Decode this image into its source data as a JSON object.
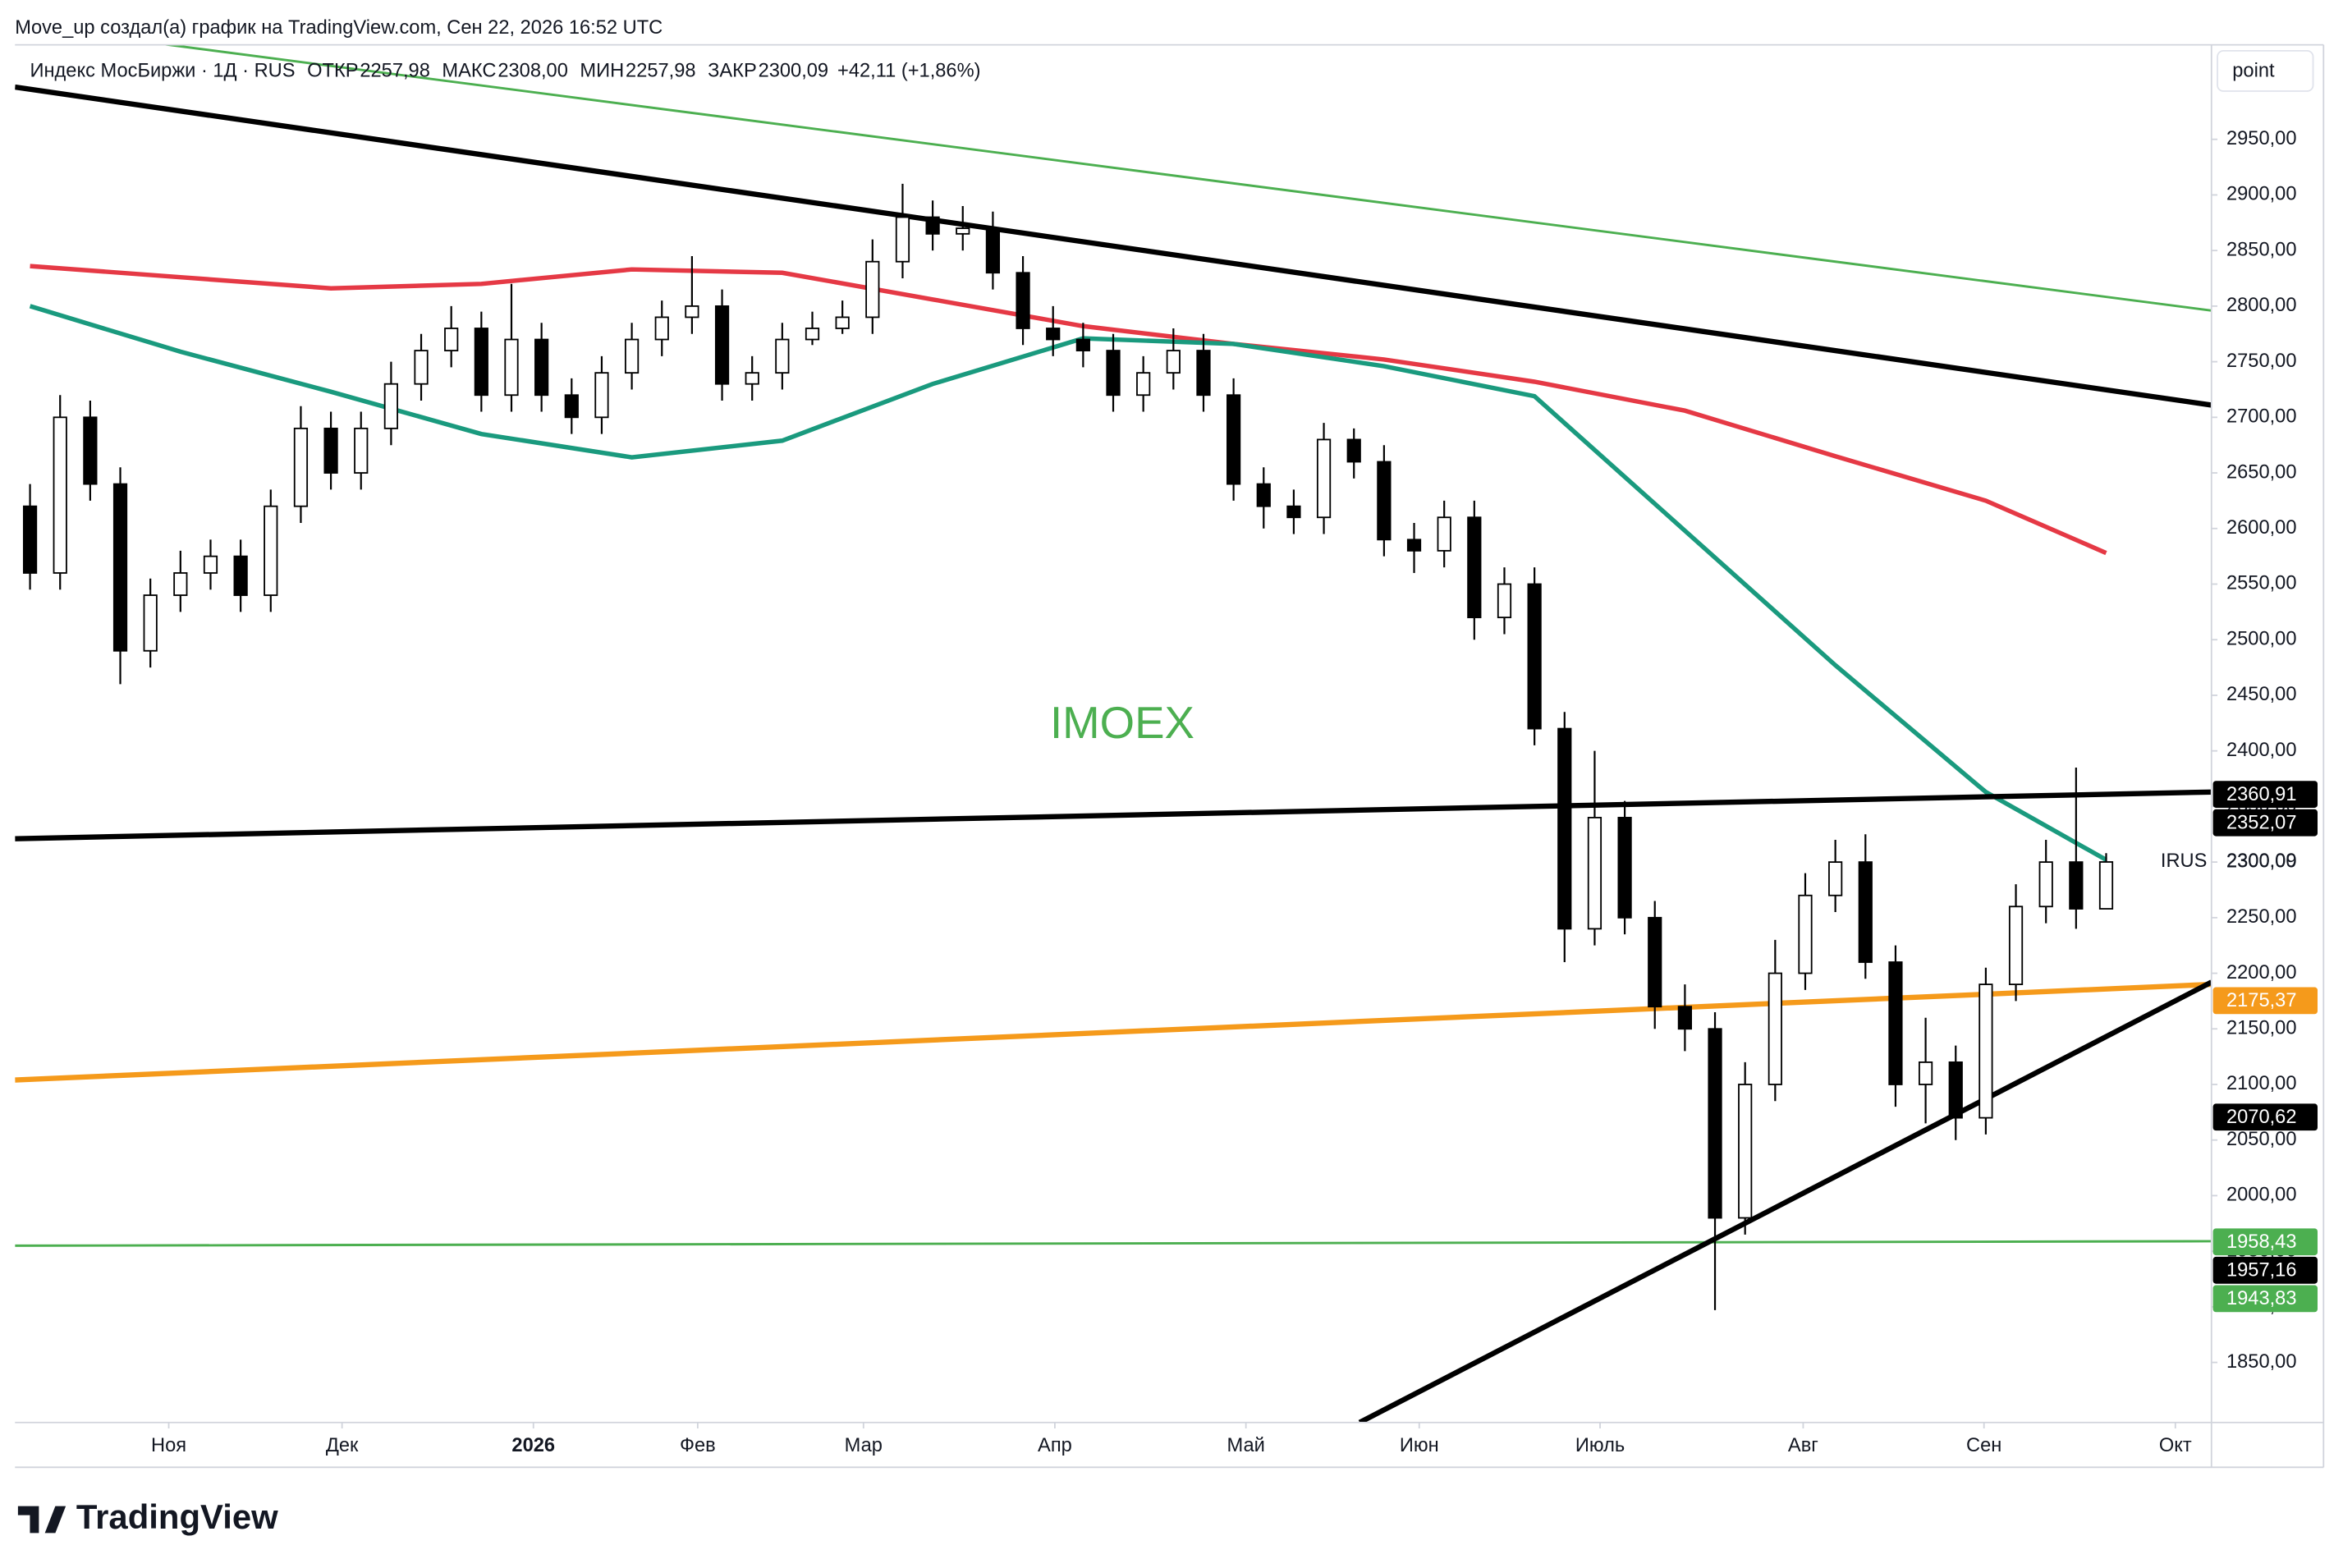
{
  "header": {
    "attribution": "Move_up создал(а) график на TradingView.com, Сен 22, 2026 16:52 UTC",
    "symbol": "Индекс МосБиржи · 1Д · RUS",
    "ohlc": [
      {
        "key": "ОТКР",
        "value": "2257,98"
      },
      {
        "key": "МАКС",
        "value": "2308,00"
      },
      {
        "key": "МИН",
        "value": "2257,98"
      },
      {
        "key": "ЗАКР",
        "value": "2300,09"
      }
    ],
    "change": "+42,11 (+1,86%)",
    "scale_button": "point"
  },
  "footer": {
    "brand": "TradingView"
  },
  "chart_data": {
    "type": "candlestick",
    "watermark": "IMOEX",
    "up_color": "#ffffff",
    "down_color": "#000000",
    "wick_color": "#000000",
    "xlim": [
      -0.5,
      72.5
    ],
    "xticks": [
      {
        "value": 4.61,
        "label": "Ноя"
      },
      {
        "value": 10.37,
        "label": "Дек"
      },
      {
        "value": 16.73,
        "label": "2026"
      },
      {
        "value": 22.19,
        "label": "Фев"
      },
      {
        "value": 27.7,
        "label": "Мар"
      },
      {
        "value": 34.06,
        "label": "Апр"
      },
      {
        "value": 40.41,
        "label": "Май"
      },
      {
        "value": 46.17,
        "label": "Июн"
      },
      {
        "value": 52.18,
        "label": "Июль"
      },
      {
        "value": 58.93,
        "label": "Авг"
      },
      {
        "value": 64.94,
        "label": "Сен"
      },
      {
        "value": 71.3,
        "label": "Окт"
      }
    ],
    "ylim": [
      1796,
      3035
    ],
    "yticks": [
      {
        "value": 1850,
        "label": "1850,00"
      },
      {
        "value": 1900,
        "label": "1900,00"
      },
      {
        "value": 1950,
        "label": "1950,00"
      },
      {
        "value": 2000,
        "label": "2000,00"
      },
      {
        "value": 2050,
        "label": "2050,00"
      },
      {
        "value": 2100,
        "label": "2100,00"
      },
      {
        "value": 2150,
        "label": "2150,00"
      },
      {
        "value": 2200,
        "label": "2200,00"
      },
      {
        "value": 2250,
        "label": "2250,00"
      },
      {
        "value": 2300,
        "label": "2300,00"
      },
      {
        "value": 2350,
        "label": "2350,00"
      },
      {
        "value": 2400,
        "label": "2400,00"
      },
      {
        "value": 2450,
        "label": "2450,00"
      },
      {
        "value": 2500,
        "label": "2500,00"
      },
      {
        "value": 2550,
        "label": "2550,00"
      },
      {
        "value": 2600,
        "label": "2600,00"
      },
      {
        "value": 2650,
        "label": "2650,00"
      },
      {
        "value": 2700,
        "label": "2700,00"
      },
      {
        "value": 2750,
        "label": "2750,00"
      },
      {
        "value": 2800,
        "label": "2800,00"
      },
      {
        "value": 2850,
        "label": "2850,00"
      },
      {
        "value": 2900,
        "label": "2900,00"
      },
      {
        "value": 2950,
        "label": "2950,00"
      }
    ],
    "open": [
      2620,
      2560,
      2700,
      2640,
      2490,
      2540,
      2560,
      2575,
      2540,
      2620,
      2690,
      2650,
      2690,
      2730,
      2760,
      2780,
      2720,
      2770,
      2720,
      2700,
      2740,
      2770,
      2790,
      2800,
      2730,
      2740,
      2770,
      2780,
      2790,
      2840,
      2880,
      2865,
      2870,
      2830,
      2780,
      2770,
      2760,
      2720,
      2740,
      2760,
      2720,
      2640,
      2620,
      2610,
      2680,
      2660,
      2590,
      2580,
      2610,
      2520,
      2550,
      2420,
      2240,
      2340,
      2250,
      2170,
      2150,
      1980,
      2100,
      2200,
      2270,
      2300,
      2210,
      2100,
      2120,
      2070,
      2190,
      2260,
      2300,
      2257.98
    ],
    "high": [
      2640,
      2720,
      2715,
      2655,
      2555,
      2580,
      2590,
      2590,
      2635,
      2710,
      2705,
      2705,
      2750,
      2775,
      2800,
      2795,
      2820,
      2785,
      2735,
      2755,
      2785,
      2805,
      2845,
      2815,
      2755,
      2785,
      2795,
      2805,
      2860,
      2910,
      2895,
      2890,
      2885,
      2845,
      2800,
      2785,
      2775,
      2755,
      2780,
      2775,
      2735,
      2655,
      2635,
      2695,
      2690,
      2675,
      2605,
      2625,
      2625,
      2565,
      2565,
      2435,
      2400,
      2355,
      2265,
      2190,
      2165,
      2120,
      2230,
      2290,
      2320,
      2325,
      2225,
      2160,
      2135,
      2205,
      2280,
      2320,
      2385,
      2308
    ],
    "low": [
      2545,
      2545,
      2625,
      2460,
      2475,
      2525,
      2545,
      2525,
      2525,
      2605,
      2635,
      2635,
      2675,
      2715,
      2745,
      2705,
      2705,
      2705,
      2685,
      2685,
      2725,
      2755,
      2775,
      2715,
      2715,
      2725,
      2765,
      2775,
      2775,
      2825,
      2850,
      2850,
      2815,
      2765,
      2755,
      2745,
      2705,
      2705,
      2725,
      2705,
      2625,
      2600,
      2595,
      2595,
      2645,
      2575,
      2560,
      2565,
      2500,
      2505,
      2405,
      2210,
      2225,
      2235,
      2150,
      2130,
      1897,
      1965,
      2085,
      2185,
      2255,
      2195,
      2080,
      2065,
      2050,
      2055,
      2175,
      2245,
      2240,
      2257.98
    ],
    "close": [
      2560,
      2700,
      2640,
      2490,
      2540,
      2560,
      2575,
      2540,
      2620,
      2690,
      2650,
      2690,
      2730,
      2760,
      2780,
      2720,
      2770,
      2720,
      2700,
      2740,
      2770,
      2790,
      2800,
      2730,
      2740,
      2770,
      2780,
      2790,
      2840,
      2880,
      2865,
      2870,
      2830,
      2780,
      2770,
      2760,
      2720,
      2740,
      2760,
      2720,
      2640,
      2620,
      2610,
      2680,
      2660,
      2590,
      2580,
      2610,
      2520,
      2550,
      2420,
      2240,
      2340,
      2250,
      2170,
      2150,
      1980,
      2100,
      2200,
      2270,
      2300,
      2210,
      2100,
      2120,
      2070,
      2190,
      2260,
      2300,
      2257.98,
      2300.09
    ],
    "lines": [
      {
        "color": "#4caf50",
        "width": 1.6,
        "x": [
          -0.5,
          72.5
        ],
        "values": [
          3053,
          2796
        ]
      },
      {
        "color": "#000000",
        "width": 3.5,
        "x": [
          -0.5,
          72.5
        ],
        "values": [
          2997,
          2711
        ]
      },
      {
        "color": "#e53945",
        "width": 3,
        "x": [
          0,
          5,
          10,
          15,
          20,
          25,
          30,
          35,
          40,
          45,
          50,
          55,
          60,
          65,
          69
        ],
        "values": [
          2836,
          2826,
          2816,
          2820,
          2833,
          2830,
          2806,
          2782,
          2766,
          2752,
          2732,
          2706,
          2665,
          2625,
          2578
        ]
      },
      {
        "color": "#1a9a7e",
        "width": 3,
        "x": [
          0,
          5,
          10,
          15,
          20,
          25,
          30,
          35,
          40,
          45,
          50,
          55,
          60,
          65,
          69
        ],
        "values": [
          2800,
          2759,
          2723,
          2685,
          2664,
          2679,
          2730,
          2771,
          2766,
          2746,
          2719,
          2598,
          2477,
          2363,
          2302
        ]
      },
      {
        "color": "#000000",
        "width": 3.5,
        "x": [
          -0.5,
          72.5
        ],
        "values": [
          2321,
          2363
        ]
      },
      {
        "color": "#f59a1b",
        "width": 3.5,
        "x": [
          -0.5,
          72.5
        ],
        "values": [
          2104,
          2190
        ]
      },
      {
        "color": "#4caf50",
        "width": 1.6,
        "x": [
          -0.5,
          72.5
        ],
        "values": [
          1955,
          1959
        ]
      },
      {
        "color": "#000000",
        "width": 3.5,
        "x": [
          44.19,
          72.5
        ],
        "values": [
          1796,
          2192
        ]
      }
    ],
    "price_badges": [
      {
        "value": 2360.91,
        "label": "2360,91",
        "color": "#000000"
      },
      {
        "value": 2352.07,
        "label": "2352,07",
        "color": "#000000"
      },
      {
        "value": 2175.37,
        "label": "2175,37",
        "color": "#f59a1b"
      },
      {
        "value": 2070.62,
        "label": "2070,62",
        "color": "#000000"
      },
      {
        "value": 1958.43,
        "label": "1958,43",
        "color": "#4caf50"
      },
      {
        "value": 1957.16,
        "label": "1957,16",
        "color": "#000000"
      },
      {
        "value": 1943.83,
        "label": "1943,83",
        "color": "#4caf50"
      }
    ],
    "last_price": {
      "name": "IRUS",
      "value": 2300.09,
      "label": "2300,09"
    }
  }
}
